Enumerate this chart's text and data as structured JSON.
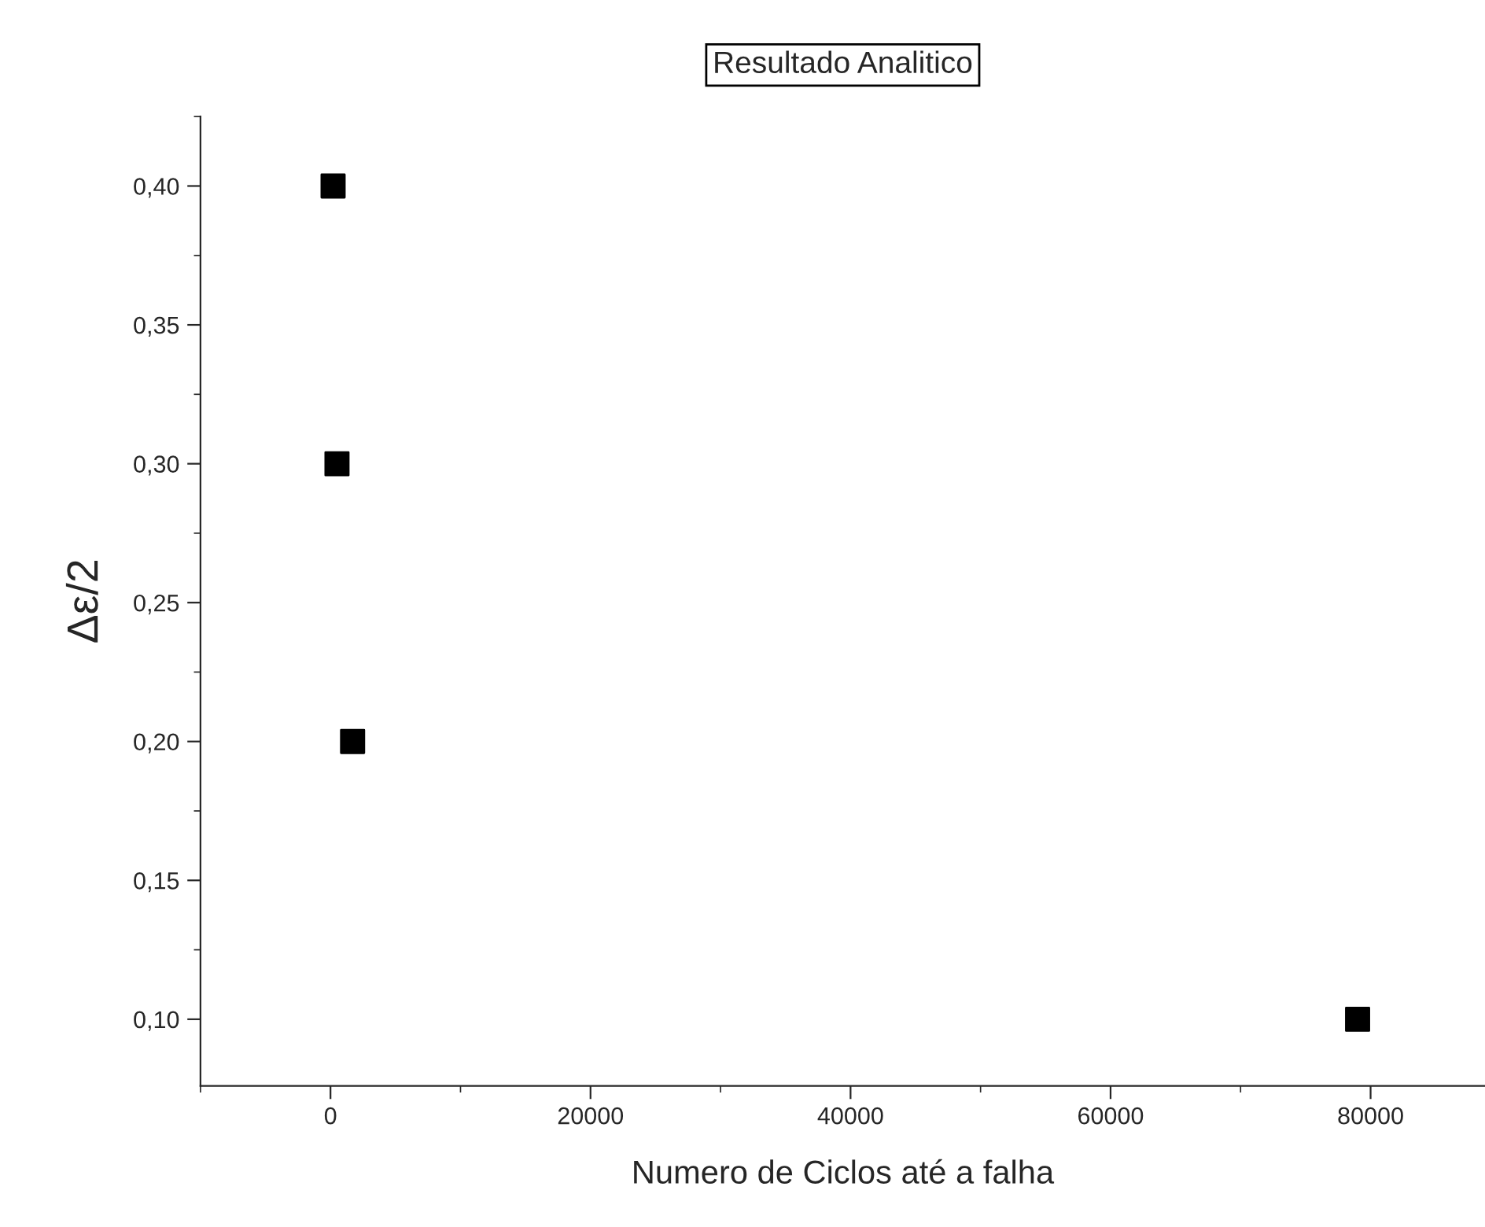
{
  "chart_data": {
    "type": "scatter",
    "title": "Resultado Analitico",
    "xlabel": "Numero de Ciclos até a falha",
    "ylabel": "Δε/2",
    "x": [
      200,
      500,
      1700,
      79000
    ],
    "series": [
      {
        "color": "#000000",
        "values": [
          0.4,
          0.3,
          0.2,
          0.1
        ]
      }
    ],
    "marker": "square",
    "grid": false,
    "xlim": [
      -10000,
      88800
    ],
    "xticks": [
      0,
      20000,
      40000,
      60000,
      80000
    ],
    "ylim": [
      0.076,
      0.425
    ],
    "yticks": [
      {
        "value": 0.1,
        "label": "0,10"
      },
      {
        "value": 0.15,
        "label": "0,15"
      },
      {
        "value": 0.2,
        "label": "0,20"
      },
      {
        "value": 0.25,
        "label": "0,25"
      },
      {
        "value": 0.3,
        "label": "0,30"
      },
      {
        "value": 0.35,
        "label": "0,35"
      },
      {
        "value": 0.4,
        "label": "0,40"
      }
    ]
  }
}
